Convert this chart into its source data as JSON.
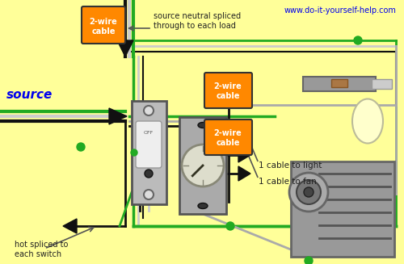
{
  "bg_color": "#FFFF99",
  "title_text": "www.do-it-yourself-help.com",
  "title_color": "#0000EE",
  "source_label": "source",
  "source_color": "#0000EE",
  "orange_label1": "2-wire\ncable",
  "orange_label2": "2-wire\ncable",
  "orange_label3": "2-wire\ncable",
  "orange_color": "#FF8800",
  "annotation1": "source neutral spliced\nthrough to each load",
  "annotation2": "hot spliced to\neach switch",
  "annotation3": "1 cable to light",
  "annotation4": "1 cable to fan",
  "text_color": "#222222",
  "green_wire": "#22AA22",
  "black_wire": "#111111",
  "red_wire": "#CC0000",
  "gray_wire": "#AAAAAA",
  "white_wire": "#CCCCCC",
  "light_globe_color": "#FFFFCC"
}
